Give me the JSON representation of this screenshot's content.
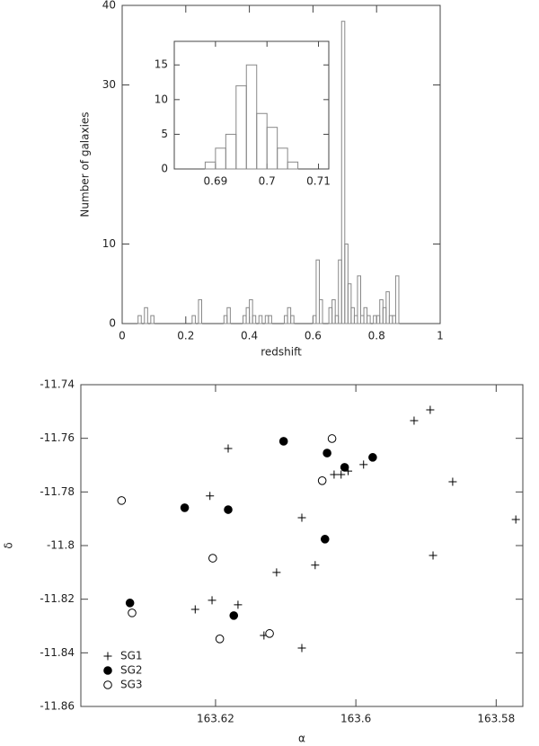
{
  "chart_data": [
    {
      "type": "histogram",
      "xlabel": "redshift",
      "ylabel": "Number of galaxies",
      "bins": [
        0,
        0.01,
        0.02,
        0.03,
        0.04,
        0.05,
        0.06,
        0.07,
        0.08,
        0.09,
        0.1,
        0.11,
        0.12,
        0.13,
        0.14,
        0.15,
        0.16,
        0.17,
        0.18,
        0.19,
        0.2,
        0.21,
        0.22,
        0.23,
        0.24,
        0.25,
        0.26,
        0.27,
        0.28,
        0.29,
        0.3,
        0.31,
        0.32,
        0.33,
        0.34,
        0.35,
        0.36,
        0.37,
        0.38,
        0.39,
        0.4,
        0.41,
        0.42,
        0.43,
        0.44,
        0.45,
        0.46,
        0.47,
        0.48,
        0.49,
        0.5,
        0.51,
        0.52,
        0.53,
        0.54,
        0.55,
        0.56,
        0.57,
        0.58,
        0.59,
        0.6,
        0.61,
        0.62,
        0.63,
        0.64,
        0.65,
        0.66,
        0.67,
        0.68,
        0.69,
        0.7,
        0.71,
        0.72,
        0.73,
        0.74,
        0.75,
        0.76,
        0.77,
        0.78,
        0.79,
        0.8,
        0.81,
        0.82,
        0.83,
        0.84,
        0.85,
        0.86,
        0.87,
        0.88,
        0.89,
        0.9,
        0.91,
        0.92,
        0.93,
        0.94,
        0.95,
        0.96,
        0.97,
        0.98,
        0.99,
        1
      ],
      "values": [
        0,
        0,
        0,
        0,
        0,
        1,
        0,
        2,
        0,
        1,
        0,
        0,
        0,
        0,
        0,
        0,
        0,
        0,
        0,
        0,
        0,
        0,
        1,
        0,
        3,
        0,
        0,
        0,
        0,
        0,
        0,
        0,
        1,
        2,
        0,
        0,
        0,
        0,
        1,
        2,
        3,
        1,
        0,
        1,
        0,
        1,
        1,
        0,
        0,
        0,
        0,
        1,
        2,
        1,
        0,
        0,
        0,
        0,
        0,
        0,
        1,
        8,
        3,
        0,
        0,
        2,
        3,
        1,
        8,
        38,
        10,
        5,
        2,
        1,
        6,
        1,
        2,
        1,
        0,
        1,
        1,
        3,
        2,
        4,
        1,
        1,
        6,
        0,
        0,
        0,
        0,
        0,
        0,
        0,
        0,
        0,
        0,
        0,
        0,
        0
      ],
      "color": "#888888",
      "xlim": [
        0,
        1
      ],
      "ylim": [
        0,
        40
      ],
      "xticks": [
        0,
        0.2,
        0.4,
        0.6,
        0.8,
        1
      ],
      "yticks": [
        0,
        10,
        30,
        40
      ]
    },
    {
      "type": "histogram",
      "bins": [
        0.686,
        0.688,
        0.69,
        0.692,
        0.694,
        0.696,
        0.698,
        0.7,
        0.702,
        0.704,
        0.706
      ],
      "values": [
        0,
        1,
        3,
        5,
        12,
        15,
        8,
        6,
        3,
        1
      ],
      "color": "#888888",
      "xlim": [
        0.682,
        0.712
      ],
      "ylim": [
        0,
        18.4
      ],
      "xticks": [
        0.69,
        0.7,
        0.71
      ],
      "yticks": [
        0,
        5,
        10,
        15
      ]
    },
    {
      "type": "scatter",
      "xlabel": "α",
      "ylabel": "δ",
      "xlim": [
        163.6392,
        163.5762
      ],
      "ylim": [
        -11.86,
        -11.74
      ],
      "xticks": [
        163.62,
        163.6,
        163.58
      ],
      "yticks": [
        -11.86,
        -11.84,
        -11.82,
        -11.8,
        -11.78,
        -11.76,
        -11.74
      ],
      "legend": "lower left",
      "series": [
        {
          "name": "SG1",
          "color": "#000000",
          "marker": "plus",
          "x": [
            163.5894,
            163.5917,
            163.6182,
            163.5989,
            163.6031,
            163.6021,
            163.6011,
            163.6208,
            163.5862,
            163.5772,
            163.6077,
            163.589,
            163.6058,
            163.6113,
            163.6205,
            163.6168,
            163.6229,
            163.6131,
            163.6077
          ],
          "values": [
            -11.7494,
            -11.7534,
            -11.7638,
            -11.7698,
            -11.7735,
            -11.7735,
            -11.7722,
            -11.7815,
            -11.7762,
            -11.7903,
            -11.7896,
            -11.8037,
            -11.8073,
            -11.81,
            -11.8204,
            -11.8221,
            -11.8238,
            -11.8335,
            -11.8382
          ]
        },
        {
          "name": "SG2",
          "color": "#000000",
          "marker": "filled-circle",
          "x": [
            163.6103,
            163.6041,
            163.6016,
            163.5976,
            163.6244,
            163.6182,
            163.6044,
            163.6322,
            163.6174
          ],
          "values": [
            -11.7611,
            -11.7655,
            -11.7708,
            -11.7671,
            -11.7859,
            -11.7866,
            -11.7976,
            -11.8214,
            -11.8261
          ]
        },
        {
          "name": "SG3",
          "color": "#000000",
          "marker": "open-circle",
          "x": [
            163.6034,
            163.6048,
            163.6334,
            163.6204,
            163.6319,
            163.6194,
            163.6123
          ],
          "values": [
            -11.7601,
            -11.7758,
            -11.7832,
            -11.8047,
            -11.8251,
            -11.8348,
            -11.8328
          ]
        }
      ]
    }
  ]
}
